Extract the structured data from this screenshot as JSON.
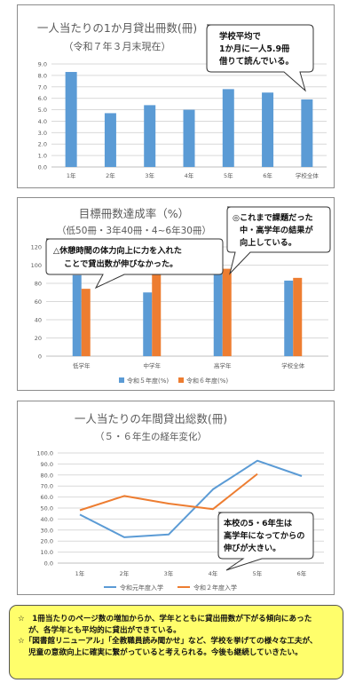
{
  "chart_data": [
    {
      "type": "bar",
      "title": "一人当たりの1か月貸出冊数(冊)",
      "subtitle": "（令和７年３月末現在）",
      "categories": [
        "1年",
        "2年",
        "3年",
        "4年",
        "5年",
        "6年",
        "学校全体"
      ],
      "values": [
        8.3,
        4.7,
        5.4,
        5.0,
        6.8,
        6.5,
        5.9
      ],
      "ylim": [
        0,
        9
      ],
      "yticks": [
        "0.0",
        "1.0",
        "2.0",
        "3.0",
        "4.0",
        "5.0",
        "6.0",
        "7.0",
        "8.0",
        "9.0"
      ],
      "grid": true,
      "colors": {
        "bar": "#5b9bd5"
      },
      "callout": [
        "学校平均で",
        "1か月に一人5.9冊",
        "借りて読んでいる。"
      ]
    },
    {
      "type": "bar",
      "title": "目標冊数達成率（%）",
      "subtitle": "（低50冊・3年40冊・4~6年30冊）",
      "categories": [
        "低学年",
        "中学年",
        "高学年",
        "学校全体"
      ],
      "series": [
        {
          "name": "令和５年度(%)",
          "values": [
            89,
            70,
            91,
            83
          ],
          "color": "#5b9bd5"
        },
        {
          "name": "令和６年度(%)",
          "values": [
            74,
            91,
            96,
            86
          ],
          "color": "#ed7d31"
        }
      ],
      "ylim": [
        0,
        120
      ],
      "yticks": [
        "0",
        "20",
        "40",
        "60",
        "80",
        "100",
        "120"
      ],
      "grid": true,
      "legend": "bottom",
      "callout_left": [
        "△休憩時間の体力向上に力を入れた",
        "ことで貸出数が伸びなかった。"
      ],
      "callout_right": [
        "◎これまで課題だった",
        "中・高学年の結果が",
        "向上している。"
      ]
    },
    {
      "type": "line",
      "title": "一人当たりの年間貸出総数(冊)",
      "subtitle": "（５・６年生の経年変化）",
      "categories": [
        "1年",
        "2年",
        "3年",
        "4年",
        "5年",
        "6年"
      ],
      "series": [
        {
          "name": "令和元年度入学",
          "values": [
            44,
            23.5,
            26,
            67,
            93,
            79
          ],
          "color": "#5b9bd5"
        },
        {
          "name": "令和２年度入学",
          "values": [
            48,
            61,
            54,
            49,
            81,
            null
          ],
          "color": "#ed7d31"
        }
      ],
      "ylim": [
        0,
        100
      ],
      "yticks": [
        "0.0",
        "10.0",
        "20.0",
        "30.0",
        "40.0",
        "50.0",
        "60.0",
        "70.0",
        "80.0",
        "90.0",
        "100.0"
      ],
      "grid": true,
      "legend": "bottom",
      "callout": [
        "本校の5・6年生は",
        "高学年になってからの",
        "伸びが大きい。"
      ]
    }
  ],
  "note": {
    "line1": "☆　1冊当たりのページ数の増加からか、学年とともに貸出冊数が下がる傾向にあった",
    "line2": "が、各学年とも平均的に貸出ができている。",
    "line3": "☆「図書館リニューアル」「全教職員読み聞かせ」など、学校を挙げての様々な工夫が、",
    "line4": "児童の意欲向上に確実に繋がっていると考えられる。今後も継続していきたい。"
  }
}
